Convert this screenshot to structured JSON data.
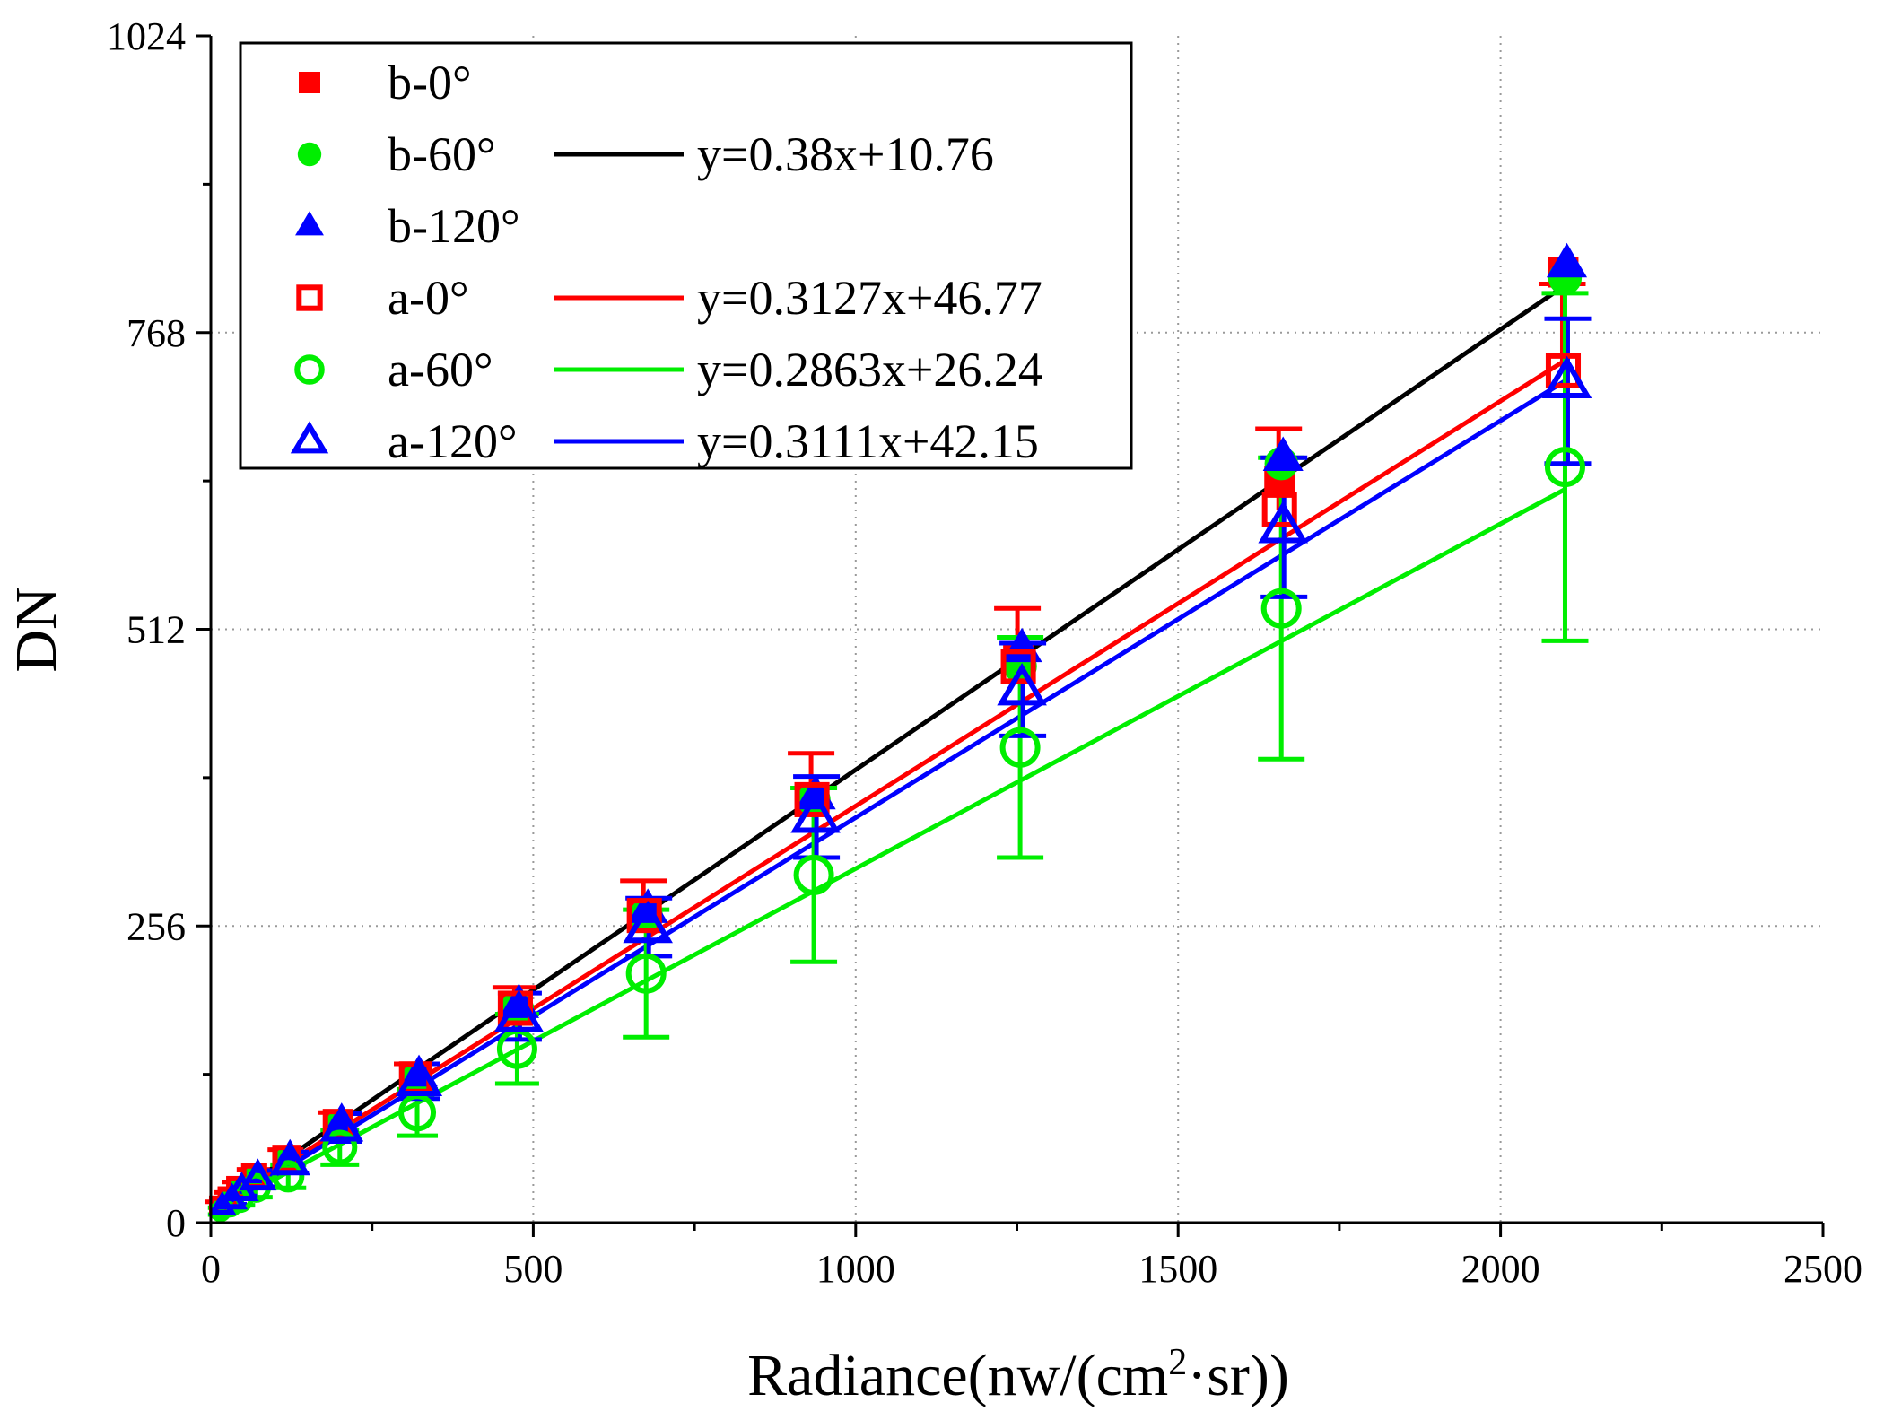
{
  "chart_data": {
    "type": "scatter",
    "title": "",
    "xlabel": "Radiance(nw/(cm²·sr))",
    "xlabel_parts": {
      "main": "Radiance(nw/(cm",
      "sup": "2",
      "tail": "·sr))"
    },
    "ylabel": "DN",
    "xlim": [
      0,
      2500
    ],
    "ylim": [
      0,
      1024
    ],
    "x_ticks": [
      "0",
      "500",
      "1000",
      "1500",
      "2000",
      "2500"
    ],
    "x_tick_values": [
      0,
      500,
      1000,
      1500,
      2000,
      2500
    ],
    "y_ticks": [
      "0",
      "256",
      "512",
      "768",
      "1024"
    ],
    "y_tick_values": [
      0,
      256,
      512,
      768,
      1024
    ],
    "grid": true,
    "legend_position": "top-left",
    "x": [
      15,
      30,
      45,
      70,
      120,
      200,
      320,
      475,
      675,
      935,
      1255,
      1660,
      2100
    ],
    "series": [
      {
        "name": "b-0°",
        "marker": "square-filled",
        "color": "#ff0000",
        "values": [
          15,
          22,
          30,
          40,
          55,
          85,
          125,
          185,
          265,
          365,
          485,
          640,
          820
        ]
      },
      {
        "name": "b-60°",
        "marker": "circle-filled",
        "color": "#00ee00",
        "values": [
          15,
          22,
          30,
          40,
          55,
          85,
          125,
          185,
          265,
          365,
          480,
          655,
          815
        ]
      },
      {
        "name": "b-120°",
        "marker": "triangle-filled",
        "color": "#0000ff",
        "values": [
          16,
          24,
          32,
          42,
          58,
          88,
          128,
          188,
          270,
          368,
          495,
          660,
          827
        ]
      },
      {
        "name": "a-0°",
        "marker": "square-open",
        "color": "#ff0000",
        "values": [
          15,
          22,
          30,
          40,
          55,
          85,
          125,
          185,
          265,
          365,
          480,
          615,
          735
        ],
        "err_plus": [
          3,
          4,
          5,
          6,
          8,
          10,
          12,
          18,
          30,
          40,
          50,
          70,
          75
        ]
      },
      {
        "name": "a-60°",
        "marker": "circle-open",
        "color": "#00ee00",
        "values": [
          10,
          15,
          20,
          30,
          40,
          65,
          95,
          150,
          215,
          300,
          410,
          530,
          652
        ],
        "err_minus": [
          3,
          4,
          5,
          8,
          10,
          15,
          20,
          30,
          55,
          75,
          95,
          130,
          150
        ],
        "err_plus": [
          3,
          4,
          5,
          8,
          10,
          15,
          20,
          30,
          55,
          75,
          95,
          130,
          150
        ]
      },
      {
        "name": "a-120°",
        "marker": "triangle-open",
        "color": "#0000ff",
        "values": [
          14,
          20,
          28,
          38,
          52,
          82,
          122,
          178,
          255,
          350,
          460,
          600,
          725
        ],
        "err_minus": [
          3,
          4,
          5,
          7,
          9,
          12,
          15,
          20,
          25,
          35,
          40,
          60,
          70
        ],
        "err_plus": [
          3,
          4,
          5,
          7,
          9,
          12,
          15,
          20,
          25,
          35,
          40,
          60,
          55
        ]
      }
    ],
    "fits": [
      {
        "label": "y=0.38x+10.76",
        "slope": 0.38,
        "intercept": 10.76,
        "color": "#000000",
        "legend_row": 1
      },
      {
        "label": "y=0.3127x+46.77",
        "slope": 0.3127,
        "intercept": 46.77,
        "color": "#ff0000",
        "legend_row": 3,
        "plot_slope": 0.3495,
        "plot_intercept": 10
      },
      {
        "label": "y=0.2863x+26.24",
        "slope": 0.2863,
        "intercept": 26.24,
        "color": "#00ee00",
        "legend_row": 4,
        "plot_slope": 0.2975,
        "plot_intercept": 8
      },
      {
        "label": "y=0.3111x+42.15",
        "slope": 0.3111,
        "intercept": 42.15,
        "color": "#0000ff",
        "legend_row": 5,
        "plot_slope": 0.3425,
        "plot_intercept": 7
      }
    ],
    "fit_x_range": [
      10,
      2100
    ]
  }
}
